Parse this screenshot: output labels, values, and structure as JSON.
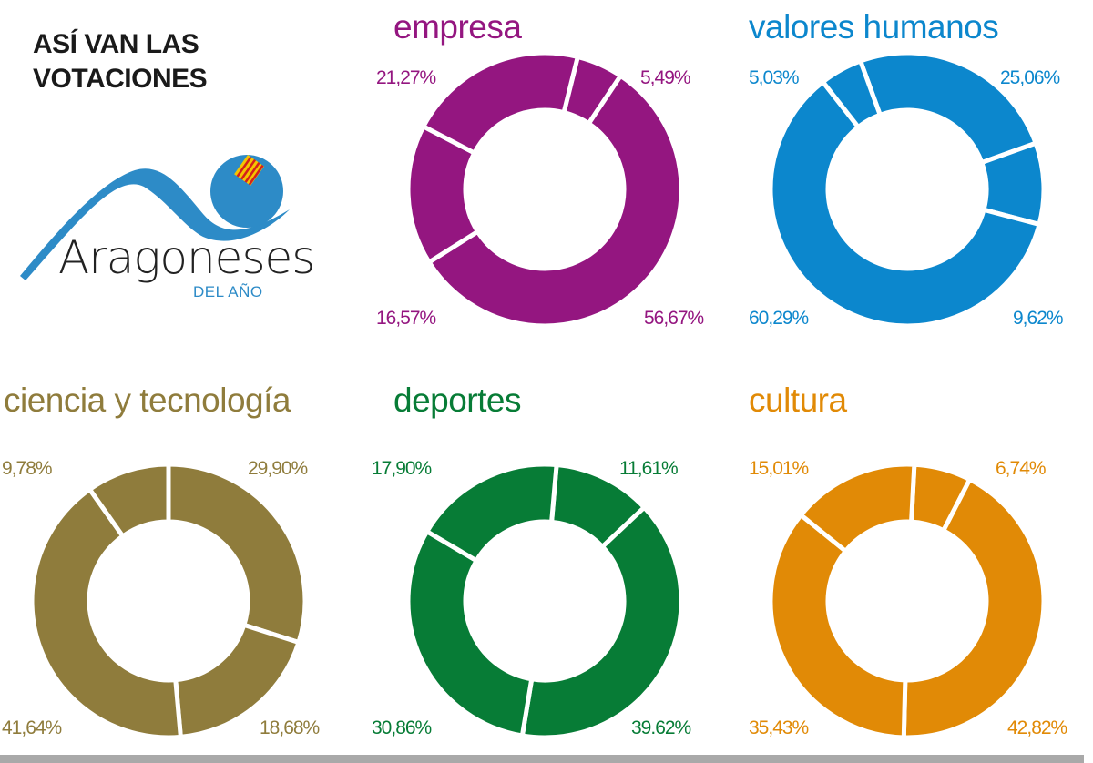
{
  "headline": {
    "line1": "ASÍ VAN LAS",
    "line2": "VOTACIONES"
  },
  "logo": {
    "name": "Aragoneses",
    "sub": "DEL AÑO",
    "icon": "aragoneses-del-ano-logo-icon",
    "color": "#2d8bc7"
  },
  "chart_data": [
    {
      "type": "pie",
      "variant": "donut",
      "title": "empresa",
      "color": "#941680",
      "start_angle_deg": 14,
      "labels": [
        "5,49%",
        "56,67%",
        "16,57%",
        "21,27%"
      ],
      "values": [
        5.49,
        56.67,
        16.57,
        21.27
      ]
    },
    {
      "type": "pie",
      "variant": "donut",
      "title": "valores humanos",
      "color": "#0c87cd",
      "start_angle_deg": -20,
      "labels": [
        "25,06%",
        "9,62%",
        "60,29%",
        "5,03%"
      ],
      "values": [
        25.06,
        9.62,
        60.29,
        5.03
      ]
    },
    {
      "type": "pie",
      "variant": "donut",
      "title": "ciencia y tecnología",
      "color": "#8f7c3c",
      "start_angle_deg": 0,
      "labels": [
        "29,90%",
        "18,68%",
        "41,64%",
        "9,78%"
      ],
      "values": [
        29.9,
        18.68,
        41.64,
        9.78
      ]
    },
    {
      "type": "pie",
      "variant": "donut",
      "title": "deportes",
      "color": "#077c36",
      "start_angle_deg": 5,
      "labels": [
        "11,61%",
        "39.62%",
        "30,86%",
        "17,90%"
      ],
      "values": [
        11.61,
        39.62,
        30.86,
        17.9
      ]
    },
    {
      "type": "pie",
      "variant": "donut",
      "title": "cultura",
      "color": "#e18a06",
      "start_angle_deg": 3,
      "labels": [
        "6,74%",
        "42,82%",
        "35,43%",
        "15,01%"
      ],
      "values": [
        6.74,
        42.82,
        35.43,
        15.01
      ]
    }
  ],
  "charts": {
    "empresa": {
      "title": "empresa",
      "top_right": "5,49%",
      "bottom_right": "56,67%",
      "bottom_left": "16,57%",
      "top_left": "21,27%"
    },
    "valores": {
      "title": "valores humanos",
      "top_right": "25,06%",
      "bottom_right": "9,62%",
      "bottom_left": "60,29%",
      "top_left": "5,03%"
    },
    "ciencia": {
      "title": "ciencia y tecnología",
      "top_right": "29,90%",
      "bottom_right": "18,68%",
      "bottom_left": "41,64%",
      "top_left": "9,78%"
    },
    "deportes": {
      "title": "deportes",
      "top_right": "11,61%",
      "bottom_right": "39.62%",
      "bottom_left": "30,86%",
      "top_left": "17,90%"
    },
    "cultura": {
      "title": "cultura",
      "top_right": "6,74%",
      "bottom_right": "42,82%",
      "bottom_left": "35,43%",
      "top_left": "15,01%"
    }
  }
}
